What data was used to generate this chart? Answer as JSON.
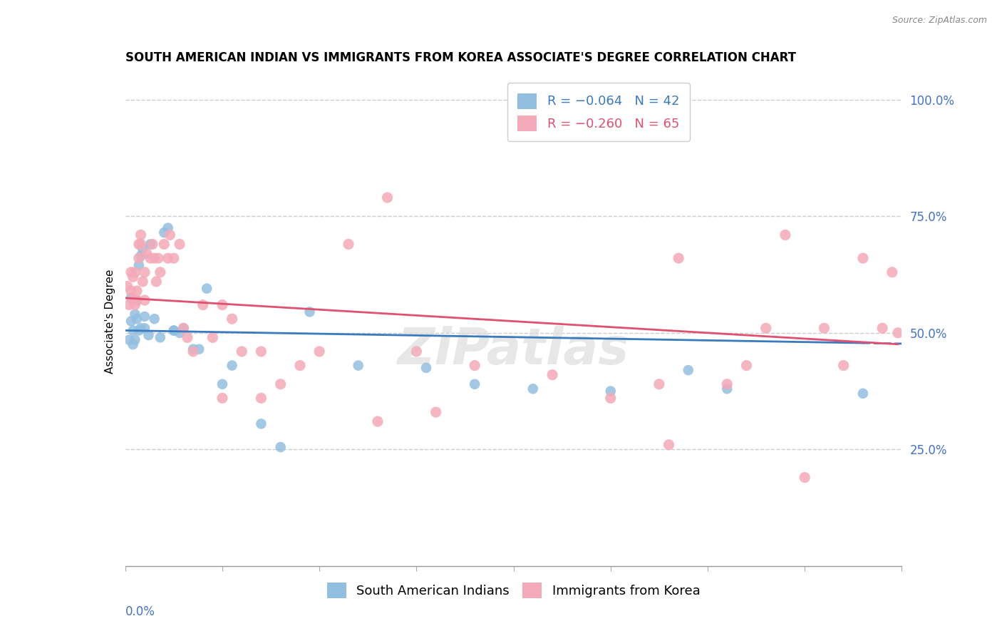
{
  "title": "SOUTH AMERICAN INDIAN VS IMMIGRANTS FROM KOREA ASSOCIATE'S DEGREE CORRELATION CHART",
  "source": "Source: ZipAtlas.com",
  "ylabel": "Associate's Degree",
  "ylabel_right_ticks": [
    "100.0%",
    "75.0%",
    "50.0%",
    "25.0%"
  ],
  "ylabel_right_vals": [
    1.0,
    0.75,
    0.5,
    0.25
  ],
  "blue_color": "#92bfe0",
  "pink_color": "#f4aab8",
  "blue_line_color": "#3a7abf",
  "pink_line_color": "#e05070",
  "blue_R": -0.064,
  "blue_N": 42,
  "pink_R": -0.26,
  "pink_N": 65,
  "xlim": [
    0.0,
    0.4
  ],
  "ylim": [
    0.0,
    1.05
  ],
  "blue_x": [
    0.002,
    0.003,
    0.003,
    0.004,
    0.004,
    0.005,
    0.005,
    0.006,
    0.006,
    0.007,
    0.007,
    0.008,
    0.008,
    0.009,
    0.01,
    0.01,
    0.012,
    0.013,
    0.015,
    0.018,
    0.02,
    0.022,
    0.025,
    0.025,
    0.028,
    0.03,
    0.035,
    0.038,
    0.042,
    0.05,
    0.055,
    0.07,
    0.08,
    0.095,
    0.12,
    0.155,
    0.18,
    0.21,
    0.25,
    0.29,
    0.31,
    0.38
  ],
  "blue_y": [
    0.485,
    0.525,
    0.575,
    0.505,
    0.475,
    0.485,
    0.54,
    0.53,
    0.57,
    0.505,
    0.645,
    0.51,
    0.665,
    0.68,
    0.51,
    0.535,
    0.495,
    0.69,
    0.53,
    0.49,
    0.715,
    0.725,
    0.505,
    0.505,
    0.5,
    0.51,
    0.465,
    0.465,
    0.595,
    0.39,
    0.43,
    0.305,
    0.255,
    0.545,
    0.43,
    0.425,
    0.39,
    0.38,
    0.375,
    0.42,
    0.38,
    0.37
  ],
  "pink_x": [
    0.001,
    0.002,
    0.003,
    0.003,
    0.004,
    0.004,
    0.005,
    0.005,
    0.006,
    0.006,
    0.007,
    0.007,
    0.008,
    0.008,
    0.009,
    0.01,
    0.01,
    0.011,
    0.013,
    0.014,
    0.015,
    0.016,
    0.017,
    0.018,
    0.02,
    0.022,
    0.023,
    0.025,
    0.028,
    0.03,
    0.032,
    0.035,
    0.04,
    0.045,
    0.05,
    0.055,
    0.06,
    0.07,
    0.08,
    0.09,
    0.1,
    0.115,
    0.13,
    0.15,
    0.16,
    0.18,
    0.22,
    0.25,
    0.275,
    0.285,
    0.31,
    0.32,
    0.33,
    0.34,
    0.35,
    0.36,
    0.37,
    0.38,
    0.39,
    0.395,
    0.398,
    0.05,
    0.28,
    0.135,
    0.07
  ],
  "pink_y": [
    0.6,
    0.56,
    0.59,
    0.63,
    0.57,
    0.62,
    0.56,
    0.63,
    0.59,
    0.57,
    0.66,
    0.69,
    0.69,
    0.71,
    0.61,
    0.63,
    0.57,
    0.67,
    0.66,
    0.69,
    0.66,
    0.61,
    0.66,
    0.63,
    0.69,
    0.66,
    0.71,
    0.66,
    0.69,
    0.51,
    0.49,
    0.46,
    0.56,
    0.49,
    0.56,
    0.53,
    0.46,
    0.46,
    0.39,
    0.43,
    0.46,
    0.69,
    0.31,
    0.46,
    0.33,
    0.43,
    0.41,
    0.36,
    0.39,
    0.66,
    0.39,
    0.43,
    0.51,
    0.71,
    0.19,
    0.51,
    0.43,
    0.66,
    0.51,
    0.63,
    0.5,
    0.36,
    0.26,
    0.79,
    0.36
  ],
  "watermark": "ZiPatlas",
  "background_color": "#ffffff",
  "grid_color": "#cccccc",
  "tick_color": "#4472c4",
  "title_fontsize": 12,
  "axis_label_fontsize": 11,
  "tick_fontsize": 12,
  "legend_fontsize": 13
}
